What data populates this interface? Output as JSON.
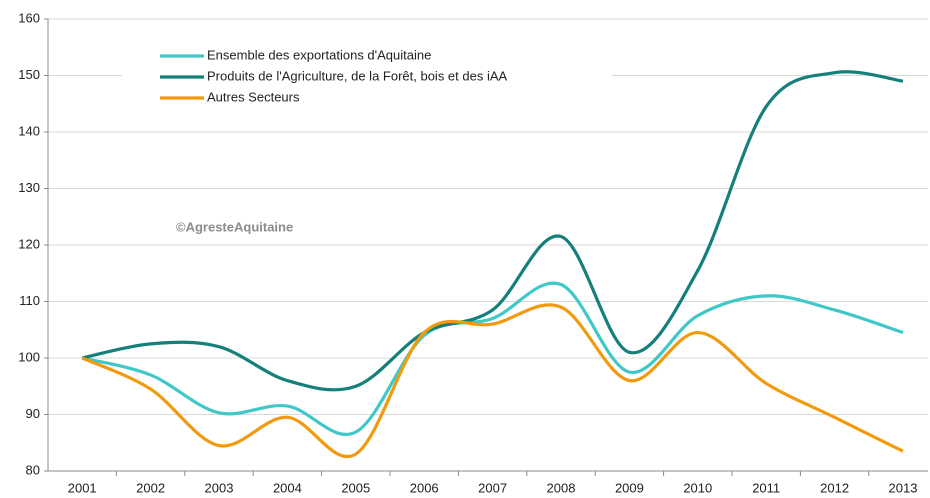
{
  "chart_data": {
    "type": "line",
    "categories": [
      "2001",
      "2002",
      "2003",
      "2004",
      "2005",
      "2006",
      "2007",
      "2008",
      "2009",
      "2010",
      "2011",
      "2012",
      "2013"
    ],
    "series": [
      {
        "name": "Ensemble des exportations d'Aquitaine",
        "color": "#40c8c8",
        "values": [
          100,
          97,
          90.3,
          91.5,
          86.9,
          104,
          107,
          113,
          97.5,
          107.5,
          111,
          108.5,
          104.5
        ]
      },
      {
        "name": "Produits de l'Agriculture, de la Forêt, bois et des iAA",
        "color": "#157f7a",
        "values": [
          100,
          102.5,
          102,
          96,
          95,
          104.5,
          108.5,
          121.5,
          101,
          115.5,
          144.5,
          150.5,
          149
        ]
      },
      {
        "name": "Autres Secteurs",
        "color": "#f29a0e",
        "values": [
          100,
          94.5,
          84.5,
          89.5,
          83,
          104.5,
          106,
          109,
          96,
          104.5,
          95.5,
          89.5,
          83.5
        ]
      }
    ],
    "ylim": [
      80,
      160
    ],
    "yticks": [
      80,
      90,
      100,
      110,
      120,
      130,
      140,
      150,
      160
    ],
    "grid": true,
    "annotations": [
      "©AgresteAquitaine"
    ],
    "legend": "upper left"
  }
}
